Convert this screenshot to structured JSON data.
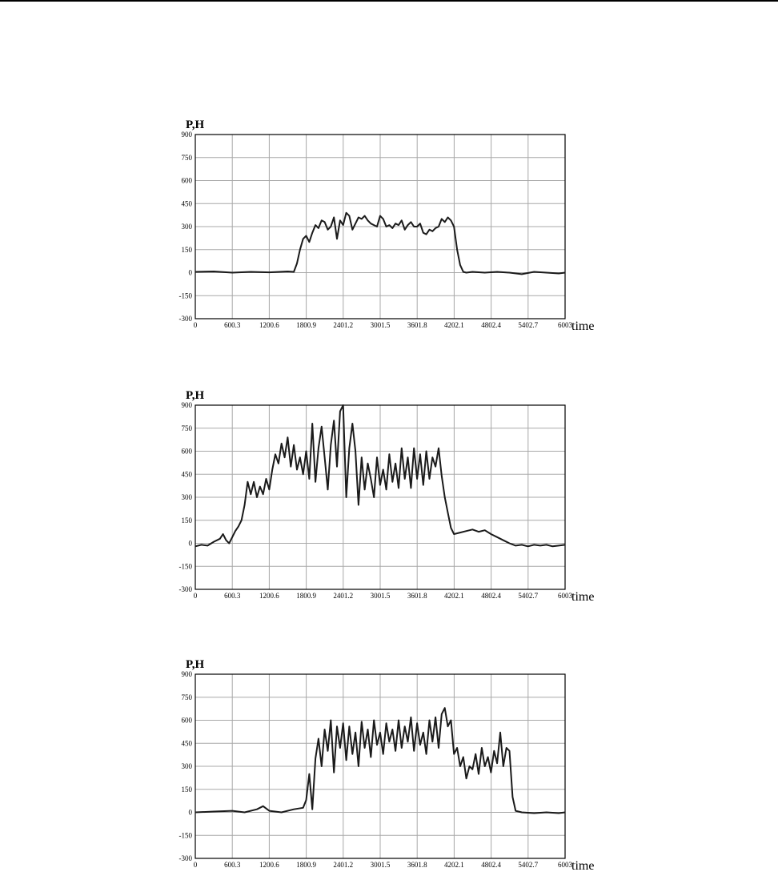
{
  "chart_data": [
    {
      "type": "line",
      "ylabel": "P,H",
      "xlabel": "time",
      "xlim": [
        0,
        6003
      ],
      "ylim": [
        -300,
        900
      ],
      "x_ticks": [
        "0",
        "600.3",
        "1200.6",
        "1800.9",
        "2401.2",
        "3001.5",
        "3601.8",
        "4202.1",
        "4802.4",
        "5402.7",
        "6003"
      ],
      "y_ticks": [
        "900",
        "750",
        "600",
        "450",
        "300",
        "150",
        "0",
        "-150",
        "-300"
      ],
      "grid": true,
      "line_color": "#1a1a1a",
      "series": [
        {
          "x": [
            0,
            300,
            600,
            900,
            1200,
            1500,
            1600,
            1650,
            1700,
            1750,
            1800,
            1850,
            1900,
            1950,
            2000,
            2050,
            2100,
            2150,
            2200,
            2250,
            2300,
            2350,
            2400,
            2450,
            2500,
            2550,
            2600,
            2650,
            2700,
            2750,
            2800,
            2850,
            2900,
            2950,
            3000,
            3050,
            3100,
            3150,
            3200,
            3250,
            3300,
            3350,
            3400,
            3450,
            3500,
            3550,
            3600,
            3650,
            3700,
            3750,
            3800,
            3850,
            3900,
            3950,
            4000,
            4050,
            4100,
            4150,
            4200,
            4250,
            4300,
            4350,
            4400,
            4500,
            4700,
            4900,
            5100,
            5300,
            5500,
            5700,
            5900,
            6003
          ],
          "y": [
            5,
            8,
            0,
            5,
            2,
            8,
            5,
            60,
            150,
            220,
            240,
            200,
            260,
            310,
            290,
            340,
            330,
            280,
            300,
            360,
            220,
            340,
            310,
            390,
            370,
            280,
            320,
            360,
            350,
            370,
            340,
            320,
            310,
            300,
            370,
            350,
            300,
            310,
            290,
            320,
            310,
            340,
            280,
            310,
            330,
            300,
            300,
            320,
            260,
            250,
            280,
            270,
            290,
            300,
            350,
            330,
            360,
            340,
            300,
            150,
            50,
            5,
            0,
            5,
            0,
            5,
            0,
            -10,
            5,
            0,
            -5,
            0
          ]
        }
      ]
    },
    {
      "type": "line",
      "ylabel": "P,H",
      "xlabel": "time",
      "xlim": [
        0,
        6003
      ],
      "ylim": [
        -300,
        900
      ],
      "x_ticks": [
        "0",
        "600.3",
        "1200.6",
        "1800.9",
        "2401.2",
        "3001.5",
        "3601.8",
        "4202.1",
        "4802.4",
        "5402.7",
        "6003"
      ],
      "y_ticks": [
        "900",
        "750",
        "600",
        "450",
        "300",
        "150",
        "0",
        "-150",
        "-300"
      ],
      "grid": true,
      "line_color": "#1a1a1a",
      "series": [
        {
          "x": [
            0,
            100,
            200,
            300,
            400,
            450,
            500,
            550,
            600,
            650,
            700,
            750,
            800,
            850,
            900,
            950,
            1000,
            1050,
            1100,
            1150,
            1200,
            1250,
            1300,
            1350,
            1400,
            1450,
            1500,
            1550,
            1600,
            1650,
            1700,
            1750,
            1800,
            1850,
            1900,
            1950,
            2000,
            2050,
            2100,
            2150,
            2200,
            2250,
            2300,
            2350,
            2400,
            2450,
            2500,
            2550,
            2600,
            2650,
            2700,
            2750,
            2800,
            2850,
            2900,
            2950,
            3000,
            3050,
            3100,
            3150,
            3200,
            3250,
            3300,
            3350,
            3400,
            3450,
            3500,
            3550,
            3600,
            3650,
            3700,
            3750,
            3800,
            3850,
            3900,
            3950,
            4000,
            4050,
            4100,
            4150,
            4200,
            4300,
            4400,
            4500,
            4600,
            4700,
            4800,
            4900,
            5000,
            5100,
            5200,
            5300,
            5400,
            5500,
            5600,
            5700,
            5800,
            5900,
            6003
          ],
          "y": [
            -20,
            -10,
            -15,
            10,
            30,
            60,
            20,
            0,
            40,
            80,
            110,
            150,
            250,
            400,
            320,
            400,
            300,
            370,
            320,
            420,
            350,
            480,
            580,
            520,
            650,
            560,
            690,
            500,
            640,
            480,
            560,
            450,
            600,
            420,
            780,
            400,
            620,
            760,
            560,
            350,
            640,
            800,
            500,
            860,
            900,
            300,
            620,
            780,
            600,
            250,
            560,
            350,
            520,
            420,
            300,
            560,
            380,
            480,
            350,
            580,
            400,
            520,
            360,
            620,
            420,
            560,
            360,
            620,
            420,
            580,
            380,
            600,
            420,
            560,
            500,
            620,
            440,
            300,
            200,
            100,
            60,
            70,
            80,
            90,
            75,
            85,
            60,
            40,
            20,
            0,
            -15,
            -10,
            -20,
            -10,
            -15,
            -10,
            -20,
            -15,
            -10
          ]
        }
      ]
    },
    {
      "type": "line",
      "ylabel": "P,H",
      "xlabel": "time",
      "xlim": [
        0,
        6003
      ],
      "ylim": [
        -300,
        900
      ],
      "x_ticks": [
        "0",
        "600.3",
        "1200.6",
        "1800.9",
        "2401.2",
        "3001.5",
        "3601.8",
        "4202.1",
        "4802.4",
        "5402.7",
        "6003"
      ],
      "y_ticks": [
        "900",
        "750",
        "600",
        "450",
        "300",
        "150",
        "0",
        "-150",
        "-300"
      ],
      "grid": true,
      "line_color": "#1a1a1a",
      "series": [
        {
          "x": [
            0,
            300,
            600,
            800,
            1000,
            1100,
            1200,
            1400,
            1600,
            1750,
            1800,
            1850,
            1900,
            1950,
            2000,
            2050,
            2100,
            2150,
            2200,
            2250,
            2300,
            2350,
            2400,
            2450,
            2500,
            2550,
            2600,
            2650,
            2700,
            2750,
            2800,
            2850,
            2900,
            2950,
            3000,
            3050,
            3100,
            3150,
            3200,
            3250,
            3300,
            3350,
            3400,
            3450,
            3500,
            3550,
            3600,
            3650,
            3700,
            3750,
            3800,
            3850,
            3900,
            3950,
            4000,
            4050,
            4100,
            4150,
            4200,
            4250,
            4300,
            4350,
            4400,
            4450,
            4500,
            4550,
            4600,
            4650,
            4700,
            4750,
            4800,
            4850,
            4900,
            4950,
            5000,
            5050,
            5100,
            5150,
            5200,
            5300,
            5500,
            5700,
            5900,
            6003
          ],
          "y": [
            0,
            5,
            10,
            0,
            20,
            40,
            10,
            0,
            20,
            30,
            80,
            250,
            20,
            350,
            480,
            300,
            540,
            400,
            600,
            260,
            560,
            420,
            580,
            340,
            560,
            380,
            520,
            300,
            590,
            420,
            540,
            360,
            600,
            440,
            520,
            380,
            580,
            460,
            540,
            400,
            600,
            420,
            560,
            460,
            620,
            400,
            580,
            440,
            520,
            380,
            600,
            460,
            620,
            420,
            640,
            680,
            560,
            600,
            380,
            420,
            300,
            360,
            220,
            300,
            280,
            380,
            250,
            420,
            300,
            360,
            260,
            400,
            320,
            520,
            300,
            420,
            400,
            100,
            10,
            0,
            -5,
            0,
            -5,
            0
          ]
        }
      ]
    }
  ]
}
